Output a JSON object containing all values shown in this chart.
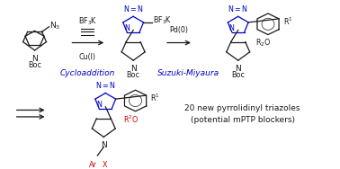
{
  "background_color": "#ffffff",
  "text_color_black": "#1a1a1a",
  "text_color_blue": "#0000cc",
  "text_color_red": "#cc0000",
  "fig_width": 3.78,
  "fig_height": 1.88,
  "dpi": 100,
  "cycloaddition_label": "Cycloaddition",
  "suzuki_label": "Suzuki-Miyaura",
  "cui_label": "Cu(I)",
  "pd0_label": "Pd(0)",
  "result_label_1": "20 new pyrrolidinyl triazoles",
  "result_label_2": "(potential mPTP blockers)"
}
